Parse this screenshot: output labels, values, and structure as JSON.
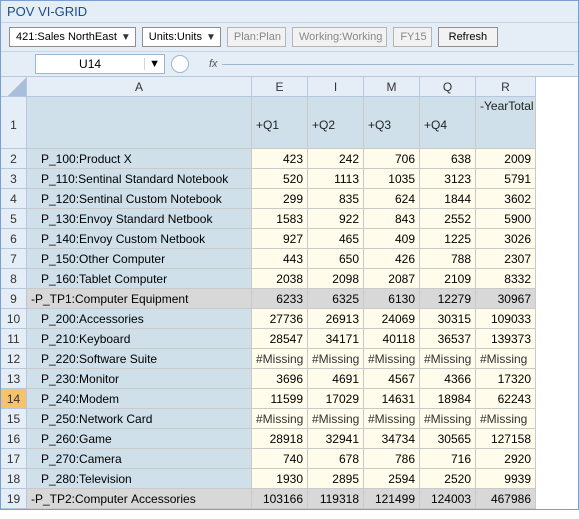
{
  "window": {
    "title": "POV VI-GRID"
  },
  "toolbar": {
    "entity": "421:Sales NorthEast",
    "units": "Units:Units",
    "plan": "Plan:Plan",
    "working": "Working:Working",
    "year": "FY15",
    "refresh": "Refresh"
  },
  "namebox": {
    "value": "U14",
    "fx": "fx"
  },
  "columns": {
    "A": "A",
    "E": "E",
    "I": "I",
    "M": "M",
    "Q": "Q",
    "R": "R",
    "q1": "+Q1",
    "q2": "+Q2",
    "q3": "+Q3",
    "q4": "+Q4",
    "yt": "-YearTotal"
  },
  "missing": "#Missing",
  "selected_row": 14,
  "rows": [
    {
      "n": 2,
      "label": "   P_100:Product X",
      "sum": false,
      "v": [
        "423",
        "242",
        "706",
        "638",
        "2009"
      ]
    },
    {
      "n": 3,
      "label": "   P_110:Sentinal Standard Notebook",
      "sum": false,
      "v": [
        "520",
        "1113",
        "1035",
        "3123",
        "5791"
      ]
    },
    {
      "n": 4,
      "label": "   P_120:Sentinal Custom Notebook",
      "sum": false,
      "v": [
        "299",
        "835",
        "624",
        "1844",
        "3602"
      ]
    },
    {
      "n": 5,
      "label": "   P_130:Envoy Standard Netbook",
      "sum": false,
      "v": [
        "1583",
        "922",
        "843",
        "2552",
        "5900"
      ]
    },
    {
      "n": 6,
      "label": "   P_140:Envoy Custom Netbook",
      "sum": false,
      "v": [
        "927",
        "465",
        "409",
        "1225",
        "3026"
      ]
    },
    {
      "n": 7,
      "label": "   P_150:Other Computer",
      "sum": false,
      "v": [
        "443",
        "650",
        "426",
        "788",
        "2307"
      ]
    },
    {
      "n": 8,
      "label": "   P_160:Tablet Computer",
      "sum": false,
      "v": [
        "2038",
        "2098",
        "2087",
        "2109",
        "8332"
      ]
    },
    {
      "n": 9,
      "label": "-P_TP1:Computer Equipment",
      "sum": true,
      "v": [
        "6233",
        "6325",
        "6130",
        "12279",
        "30967"
      ]
    },
    {
      "n": 10,
      "label": "   P_200:Accessories",
      "sum": false,
      "v": [
        "27736",
        "26913",
        "24069",
        "30315",
        "109033"
      ]
    },
    {
      "n": 11,
      "label": "   P_210:Keyboard",
      "sum": false,
      "v": [
        "28547",
        "34171",
        "40118",
        "36537",
        "139373"
      ]
    },
    {
      "n": 12,
      "label": "   P_220:Software Suite",
      "sum": false,
      "v": [
        "#Missing",
        "#Missing",
        "#Missing",
        "#Missing",
        "#Missing"
      ]
    },
    {
      "n": 13,
      "label": "   P_230:Monitor",
      "sum": false,
      "v": [
        "3696",
        "4691",
        "4567",
        "4366",
        "17320"
      ]
    },
    {
      "n": 14,
      "label": "   P_240:Modem",
      "sum": false,
      "v": [
        "11599",
        "17029",
        "14631",
        "18984",
        "62243"
      ]
    },
    {
      "n": 15,
      "label": "   P_250:Network Card",
      "sum": false,
      "v": [
        "#Missing",
        "#Missing",
        "#Missing",
        "#Missing",
        "#Missing"
      ]
    },
    {
      "n": 16,
      "label": "   P_260:Game",
      "sum": false,
      "v": [
        "28918",
        "32941",
        "34734",
        "30565",
        "127158"
      ]
    },
    {
      "n": 17,
      "label": "   P_270:Camera",
      "sum": false,
      "v": [
        "740",
        "678",
        "786",
        "716",
        "2920"
      ]
    },
    {
      "n": 18,
      "label": "   P_280:Television",
      "sum": false,
      "v": [
        "1930",
        "2895",
        "2594",
        "2520",
        "9939"
      ]
    },
    {
      "n": 19,
      "label": "-P_TP2:Computer Accessories",
      "sum": true,
      "v": [
        "103166",
        "119318",
        "121499",
        "124003",
        "467986"
      ]
    }
  ]
}
